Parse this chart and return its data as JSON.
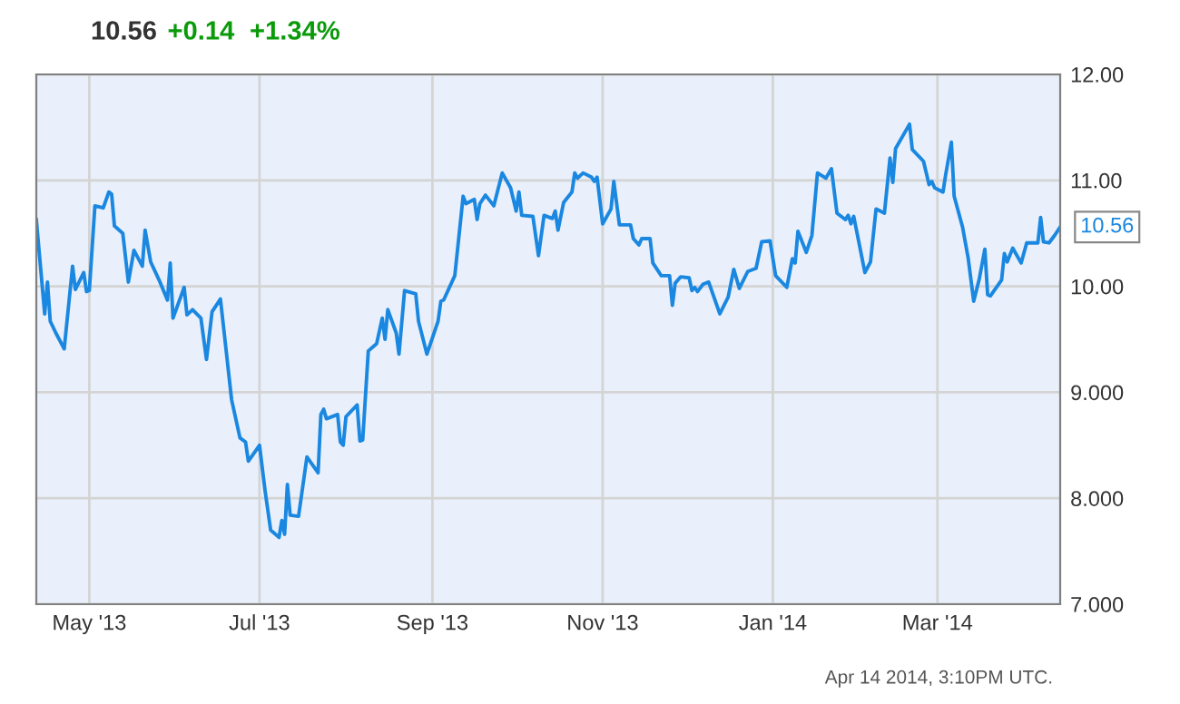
{
  "chart_data": {
    "type": "line",
    "title": "10.56",
    "x": [
      "2013-04-12",
      "2013-04-15",
      "2013-04-16",
      "2013-04-17",
      "2013-04-19",
      "2013-04-22",
      "2013-04-25",
      "2013-04-26",
      "2013-04-29",
      "2013-04-30",
      "2013-05-01",
      "2013-05-03",
      "2013-05-06",
      "2013-05-08",
      "2013-05-09",
      "2013-05-10",
      "2013-05-13",
      "2013-05-15",
      "2013-05-17",
      "2013-05-20",
      "2013-05-21",
      "2013-05-23",
      "2013-05-26",
      "2013-05-29",
      "2013-05-30",
      "2013-05-31",
      "2013-06-04",
      "2013-06-05",
      "2013-06-07",
      "2013-06-10",
      "2013-06-12",
      "2013-06-14",
      "2013-06-17",
      "2013-06-21",
      "2013-06-24",
      "2013-06-26",
      "2013-06-27",
      "2013-07-01",
      "2013-07-03",
      "2013-07-05",
      "2013-07-08",
      "2013-07-09",
      "2013-07-10",
      "2013-07-11",
      "2013-07-12",
      "2013-07-15",
      "2013-07-18",
      "2013-07-22",
      "2013-07-23",
      "2013-07-24",
      "2013-07-25",
      "2013-07-29",
      "2013-07-30",
      "2013-07-31",
      "2013-08-01",
      "2013-08-05",
      "2013-08-06",
      "2013-08-07",
      "2013-08-09",
      "2013-08-12",
      "2013-08-14",
      "2013-08-15",
      "2013-08-16",
      "2013-08-19",
      "2013-08-20",
      "2013-08-22",
      "2013-08-26",
      "2013-08-27",
      "2013-08-30",
      "2013-09-03",
      "2013-09-04",
      "2013-09-05",
      "2013-09-09",
      "2013-09-12",
      "2013-09-13",
      "2013-09-16",
      "2013-09-17",
      "2013-09-18",
      "2013-09-20",
      "2013-09-23",
      "2013-09-26",
      "2013-09-29",
      "2013-10-01",
      "2013-10-02",
      "2013-10-03",
      "2013-10-07",
      "2013-10-09",
      "2013-10-11",
      "2013-10-14",
      "2013-10-15",
      "2013-10-16",
      "2013-10-18",
      "2013-10-21",
      "2013-10-22",
      "2013-10-23",
      "2013-10-25",
      "2013-10-28",
      "2013-10-29",
      "2013-10-30",
      "2013-11-01",
      "2013-11-04",
      "2013-11-05",
      "2013-11-07",
      "2013-11-11",
      "2013-11-12",
      "2013-11-14",
      "2013-11-15",
      "2013-11-18",
      "2013-11-19",
      "2013-11-22",
      "2013-11-25",
      "2013-11-26",
      "2013-11-27",
      "2013-11-29",
      "2013-12-02",
      "2013-12-03",
      "2013-12-04",
      "2013-12-05",
      "2013-12-07",
      "2013-12-09",
      "2013-12-13",
      "2013-12-16",
      "2013-12-18",
      "2013-12-20",
      "2013-12-23",
      "2013-12-26",
      "2013-12-28",
      "2013-12-31",
      "2014-01-02",
      "2014-01-06",
      "2014-01-08",
      "2014-01-09",
      "2014-01-10",
      "2014-01-13",
      "2014-01-15",
      "2014-01-17",
      "2014-01-20",
      "2014-01-22",
      "2014-01-24",
      "2014-01-27",
      "2014-01-28",
      "2014-01-29",
      "2014-01-30",
      "2014-02-03",
      "2014-02-05",
      "2014-02-07",
      "2014-02-10",
      "2014-02-12",
      "2014-02-13",
      "2014-02-14",
      "2014-02-19",
      "2014-02-20",
      "2014-02-24",
      "2014-02-26",
      "2014-02-27",
      "2014-02-28",
      "2014-03-03",
      "2014-03-04",
      "2014-03-06",
      "2014-03-07",
      "2014-03-10",
      "2014-03-12",
      "2014-03-14",
      "2014-03-16",
      "2014-03-18",
      "2014-03-19",
      "2014-03-20",
      "2014-03-24",
      "2014-03-25",
      "2014-03-26",
      "2014-03-28",
      "2014-03-31",
      "2014-04-02",
      "2014-04-06",
      "2014-04-07",
      "2014-04-08",
      "2014-04-10",
      "2014-04-12",
      "2014-04-14"
    ],
    "series": [
      {
        "color": "#1a87e0",
        "values": [
          10.63,
          9.74,
          10.04,
          9.67,
          9.56,
          9.41,
          10.19,
          9.97,
          10.13,
          9.95,
          9.96,
          10.76,
          10.74,
          10.89,
          10.87,
          10.57,
          10.5,
          10.04,
          10.34,
          10.19,
          10.53,
          10.23,
          10.06,
          9.87,
          10.22,
          9.7,
          9.99,
          9.73,
          9.78,
          9.7,
          9.31,
          9.76,
          9.88,
          8.93,
          8.57,
          8.53,
          8.35,
          8.5,
          8.07,
          7.7,
          7.63,
          7.79,
          7.66,
          8.13,
          7.84,
          7.83,
          8.39,
          8.24,
          8.79,
          8.84,
          8.75,
          8.79,
          8.53,
          8.5,
          8.77,
          8.88,
          8.54,
          8.55,
          9.39,
          9.46,
          9.7,
          9.5,
          9.78,
          9.56,
          9.36,
          9.96,
          9.93,
          9.67,
          9.36,
          9.67,
          9.86,
          9.87,
          10.1,
          10.85,
          10.78,
          10.82,
          10.63,
          10.78,
          10.86,
          10.76,
          11.07,
          10.93,
          10.71,
          10.89,
          10.67,
          10.66,
          10.29,
          10.67,
          10.64,
          10.71,
          10.53,
          10.79,
          10.89,
          11.07,
          11.02,
          11.07,
          11.03,
          10.99,
          11.03,
          10.59,
          10.73,
          10.99,
          10.58,
          10.58,
          10.45,
          10.39,
          10.45,
          10.45,
          10.22,
          10.1,
          10.1,
          9.82,
          10.03,
          10.09,
          10.08,
          9.96,
          9.99,
          9.95,
          10.02,
          10.04,
          9.74,
          9.9,
          10.16,
          9.98,
          10.14,
          10.17,
          10.42,
          10.43,
          10.1,
          9.99,
          10.26,
          10.22,
          10.52,
          10.32,
          10.48,
          11.07,
          11.02,
          11.11,
          10.69,
          10.63,
          10.67,
          10.59,
          10.66,
          10.13,
          10.23,
          10.73,
          10.69,
          11.21,
          10.98,
          11.3,
          11.53,
          11.29,
          11.18,
          10.96,
          10.99,
          10.93,
          10.89,
          11.06,
          11.36,
          10.85,
          10.56,
          10.27,
          9.86,
          10.07,
          10.35,
          9.92,
          9.91,
          10.06,
          10.31,
          10.23,
          10.36,
          10.22,
          10.41,
          10.41,
          10.65,
          10.42,
          10.41,
          10.48,
          10.56
        ]
      }
    ],
    "xlim": [
      "2013-04-12",
      "2014-04-14"
    ],
    "xticks": [
      {
        "value": "2013-05-01",
        "label": "May '13"
      },
      {
        "value": "2013-07-01",
        "label": "Jul '13"
      },
      {
        "value": "2013-09-01",
        "label": "Sep '13"
      },
      {
        "value": "2013-11-01",
        "label": "Nov '13"
      },
      {
        "value": "2014-01-01",
        "label": "Jan '14"
      },
      {
        "value": "2014-03-01",
        "label": "Mar '14"
      }
    ],
    "ylim": [
      7,
      12
    ],
    "yticks": [
      {
        "value": 7,
        "label": "7.000"
      },
      {
        "value": 8,
        "label": "8.000"
      },
      {
        "value": 9,
        "label": "9.000"
      },
      {
        "value": 10,
        "label": "10.00"
      },
      {
        "value": 11,
        "label": "11.00"
      },
      {
        "value": 12,
        "label": "12.00"
      }
    ],
    "grid": true,
    "annotations": [
      {
        "text": "10.56",
        "x": "2014-04-14",
        "y": 10.56
      },
      "+0.14",
      "+1.34%",
      "Apr 14 2014, 3:10PM UTC."
    ]
  }
}
